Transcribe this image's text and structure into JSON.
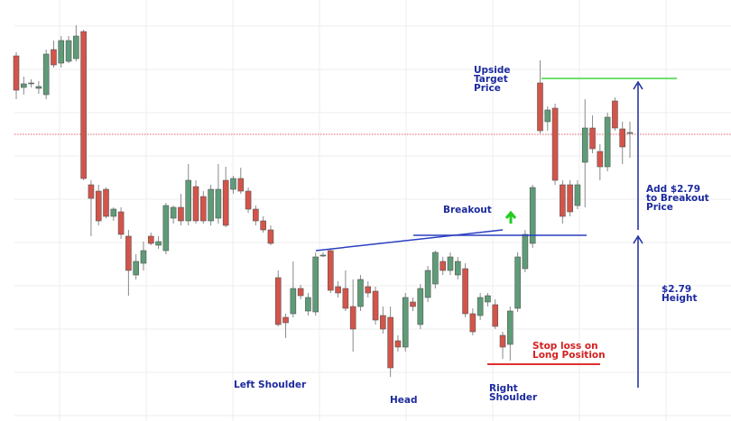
{
  "chart_data": {
    "type": "candlestick",
    "open": [
      43.8,
      40.3,
      40.7,
      40.2,
      39.5,
      44.5,
      43,
      43.2,
      43.5,
      46.5,
      29.5,
      28.8,
      29,
      26,
      26.5,
      23.8,
      19.5,
      20.8,
      23.8,
      22.8,
      22.2,
      25.8,
      27,
      25.5,
      29.3,
      28.2,
      25.5,
      25.8,
      30,
      29,
      30.2,
      28.8,
      26.8,
      25.5,
      24.5,
      19.2,
      14.8,
      15.2,
      18,
      15.5,
      15.4,
      21.6,
      22.2,
      18.2,
      18,
      16,
      16,
      18.2,
      17.7,
      15,
      14.8,
      12.2,
      11.5,
      16.5,
      14,
      17,
      18.5,
      21,
      20,
      19.5,
      20.2,
      15.2,
      15,
      16.5,
      16.2,
      12.8,
      11.8,
      15.8,
      20.2,
      23,
      40.8,
      36.5,
      38,
      29.5,
      29.5,
      27.2,
      32,
      35.8,
      33.2,
      31.5,
      38.8,
      35.7,
      35.2
    ],
    "high": [
      44.2,
      41.5,
      41.2,
      41,
      44.5,
      45.5,
      46,
      46,
      47.2,
      46.7,
      30,
      29.5,
      29.2,
      27,
      27,
      24.5,
      21.8,
      23.2,
      24.2,
      23.8,
      27.5,
      27.2,
      28.5,
      31.8,
      30,
      28.8,
      29.5,
      31.8,
      31.5,
      30.5,
      31.4,
      29.2,
      27.2,
      26,
      25,
      20,
      15.2,
      21,
      18.4,
      17.5,
      22,
      22,
      22.4,
      18.8,
      20,
      19,
      19.5,
      18.8,
      18.2,
      16,
      16,
      12.8,
      17.5,
      17,
      18.5,
      20.5,
      22.2,
      21.5,
      22,
      21.5,
      20.8,
      15.8,
      17.5,
      17.5,
      16.8,
      13.2,
      16,
      22,
      24.5,
      29.5,
      43.3,
      38.2,
      38.5,
      30,
      30,
      30,
      39,
      37.2,
      34,
      37.5,
      39.2,
      36.5,
      36.5
    ],
    "low": [
      39,
      39.5,
      40.3,
      39.6,
      39,
      42.5,
      42.5,
      43,
      43.2,
      30,
      23.8,
      25,
      25.8,
      25.5,
      23.5,
      17.2,
      19,
      20,
      22.8,
      22.4,
      21.8,
      25.2,
      25,
      25,
      25.2,
      25.2,
      25,
      25.2,
      24.8,
      28.5,
      28.5,
      26.4,
      25,
      24.2,
      22.8,
      13.8,
      12.5,
      14.8,
      16.8,
      15,
      15,
      21.5,
      17.5,
      17,
      15.5,
      11,
      15.5,
      17,
      14,
      13,
      8.2,
      11,
      11,
      15.5,
      13.5,
      16.5,
      18,
      19.5,
      19.5,
      19,
      14.8,
      12.8,
      14.5,
      16,
      13.5,
      10.2,
      10,
      15.4,
      19.8,
      22.5,
      35.2,
      35.5,
      29.5,
      25.2,
      26,
      26.8,
      27,
      33,
      30,
      31,
      35.5,
      31.8,
      32.5
    ],
    "close": [
      40,
      40.7,
      40.8,
      40.4,
      44,
      42.8,
      45.5,
      45.5,
      46,
      30.2,
      28,
      25.5,
      26,
      26.8,
      24,
      20,
      21,
      22.2,
      23,
      23.2,
      27.2,
      27,
      25.5,
      30,
      25.5,
      25.5,
      29,
      29,
      25,
      30.2,
      28.8,
      26.8,
      25.5,
      24.5,
      23,
      14,
      14.2,
      18,
      17.2,
      17,
      21.5,
      21.7,
      17.8,
      17.5,
      15.8,
      13.5,
      19,
      17.5,
      14.5,
      13.5,
      9.2,
      11.5,
      17,
      16,
      18,
      20,
      22,
      20,
      21.5,
      21,
      15.2,
      13.2,
      17,
      17.2,
      13.8,
      11.5,
      15.5,
      21.5,
      24,
      29.2,
      35.5,
      37.8,
      30,
      26,
      26.5,
      29.5,
      35.8,
      33.5,
      31.5,
      37,
      35.8,
      33.7,
      35.3
    ],
    "up_color": "#5e9c78",
    "down_color": "#d4544a",
    "ylim": [
      3.3,
      50
    ],
    "annotations": [
      {
        "lines": [
          "Upside",
          "Target",
          "Price"
        ]
      },
      {
        "lines": [
          "Breakout"
        ]
      },
      {
        "lines": [
          "Add $2.79",
          "to Breakout",
          "Price"
        ]
      },
      {
        "lines": [
          "$2.79",
          "Height"
        ]
      },
      {
        "lines": [
          "Stop loss on",
          "Long Position"
        ]
      },
      {
        "lines": [
          "Left Shoulder"
        ]
      },
      {
        "lines": [
          "Head"
        ]
      },
      {
        "lines": [
          "Right",
          "Shoulder"
        ]
      }
    ]
  }
}
